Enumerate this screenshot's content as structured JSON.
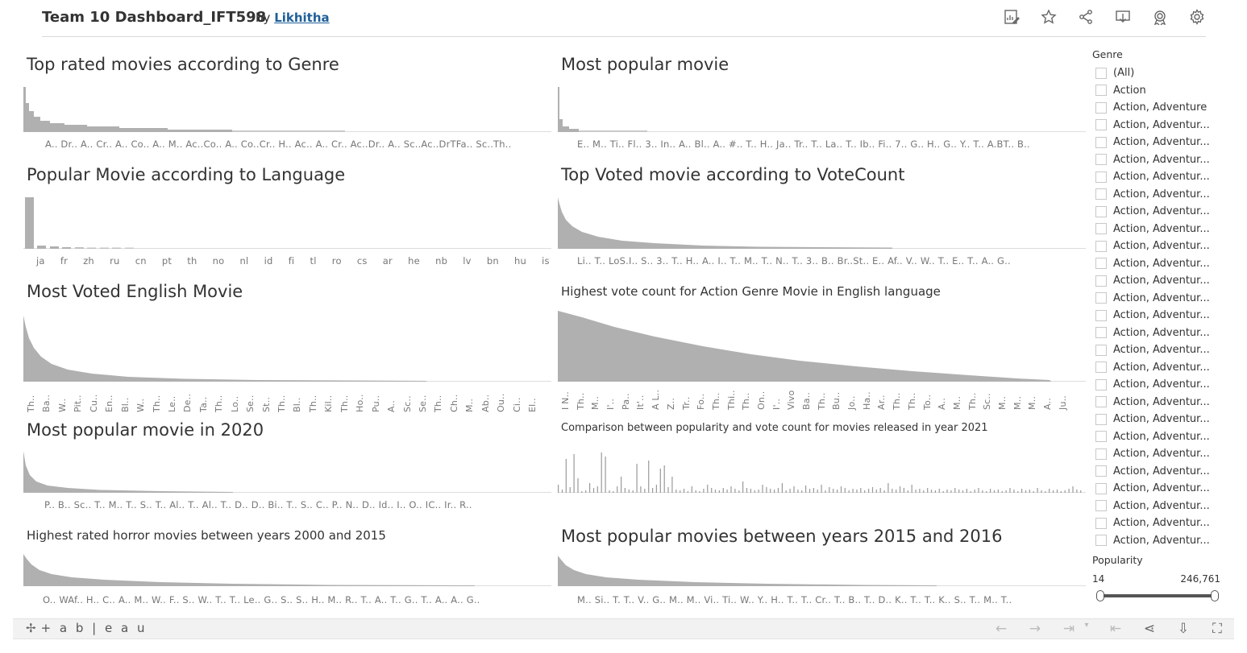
{
  "header": {
    "title": "Team 10 Dashboard_IFT598",
    "by": "by",
    "author": "Likhitha",
    "icons": [
      "edit-chart-icon",
      "star-icon",
      "share-icon",
      "download-icon",
      "badge-icon",
      "gear-icon"
    ]
  },
  "panels": {
    "p1": {
      "title": "Top rated movies according to Genre",
      "ticks": "A.. Dr.. A.. Cr.. A.. Co.. A.. M.. Ac..Co.. A.. Co..Cr.. H.. Ac.. A.. Cr.. Ac..Dr.. A.. Sc..Ac..DrTFa.. Sc..Th.."
    },
    "p2": {
      "title": "Most popular movie",
      "ticks": "E.. M.. Ti.. Fl.. 3.. In.. A.. Bl.. A.. #.. T.. H.. Ja.. Tr.. T.. La.. T.. Ib.. Fi.. 7.. G.. H.. G.. Y.. T.. A.BT.. B.."
    },
    "p3": {
      "title": "Popular Movie according to Language",
      "ticks": [
        "ja",
        "fr",
        "zh",
        "ru",
        "cn",
        "pt",
        "th",
        "no",
        "nl",
        "id",
        "fi",
        "tl",
        "ro",
        "cs",
        "ar",
        "he",
        "nb",
        "lv",
        "bn",
        "hu",
        "is"
      ]
    },
    "p4": {
      "title": "Top Voted movie according to VoteCount",
      "ticks": "Li.. T.. LoS.I.. S.. 3.. T.. H.. A.. I.. T.. M.. T.. N.. T.. 3.. B.. Br..St.. E.. Af.. V.. W.. T.. E.. T.. A.. G.."
    },
    "p5": {
      "title": "Most Voted English Movie",
      "ticks": [
        "Th..",
        "Ba..",
        "W..",
        "Pit..",
        "Cu..",
        "En..",
        "Bl..",
        "W..",
        "Th..",
        "Le..",
        "De..",
        "Ta..",
        "Th..",
        "Lo..",
        "Se..",
        "St..",
        "Th..",
        "Bl..",
        "Th..",
        "Kil..",
        "Th..",
        "Ho..",
        "Pu..",
        "A..",
        "Sc..",
        "Se..",
        "Th..",
        "Ch..",
        "M..",
        "Ab..",
        "Ou..",
        "Ci..",
        "El.."
      ]
    },
    "p6": {
      "title": "Highest vote count for Action Genre Movie in  English language",
      "ticks": [
        "I N..",
        "Th..",
        "M..",
        "I'..",
        "Pa..",
        "It'..",
        "A L..",
        "Z..",
        "Tr..",
        "Fo..",
        "Th..",
        "Thi..",
        "Th..",
        "On..",
        "I'..",
        "Vivo",
        "Ba..",
        "Th..",
        "Bu..",
        "Jo..",
        "Ha..",
        "Ar..",
        "Th..",
        "Th..",
        "To..",
        "A..",
        "M..",
        "Th..",
        "Sc..",
        "M..",
        "M..",
        "M..",
        "A..",
        "Ju.."
      ]
    },
    "p7": {
      "title": "Most popular movie in 2020",
      "ticks": "P.. B.. Sc.. T.. M.. T.. S.. T.. Al.. T.. Al.. T.. D.. D.. Bi.. T.. S.. C.. P.. N.. D.. Id.. I.. O.. IC.. Ir.. R.."
    },
    "p8": {
      "title": "Comparison between popularity and vote count for movies released in year 2021"
    },
    "p9": {
      "title": "Highest rated horror movies between years 2000 and 2015",
      "ticks": "O.. WAf.. H.. C.. A.. M.. W.. F.. S.. W.. T.. T.. Le.. G.. S.. S.. H.. M.. R.. T.. A.. T.. G.. T.. A.. A.. G.."
    },
    "p10": {
      "title": "Most popular movies between years 2015 and 2016",
      "ticks": "M.. Si.. T. T.. V.. G.. M.. M.. Vi.. Ti.. W.. Y.. H.. T.. T.. Cr.. T.. B.. T.. D.. K.. T.. T.. K.. S.. T.. M.. T.."
    }
  },
  "filter": {
    "label": "Genre",
    "items": [
      "(All)",
      "Action",
      "Action, Adventure",
      "Action, Adventur...",
      "Action, Adventur...",
      "Action, Adventur...",
      "Action, Adventur...",
      "Action, Adventur...",
      "Action, Adventur...",
      "Action, Adventur...",
      "Action, Adventur...",
      "Action, Adventur...",
      "Action, Adventur...",
      "Action, Adventur...",
      "Action, Adventur...",
      "Action, Adventur...",
      "Action, Adventur...",
      "Action, Adventur...",
      "Action, Adventur...",
      "Action, Adventur...",
      "Action, Adventur...",
      "Action, Adventur...",
      "Action, Adventur...",
      "Action, Adventur...",
      "Action, Adventur...",
      "Action, Adventur...",
      "Action, Adventur...",
      "Action, Adventur..."
    ]
  },
  "popularity": {
    "label": "Popularity",
    "min": "14",
    "max": "246,761"
  },
  "footer": {
    "logo": "+ a b | e a u",
    "icons": [
      "undo-icon",
      "redo-icon",
      "revert-icon",
      "dropdown-icon",
      "first-icon",
      "share-icon",
      "download-icon",
      "fullscreen-icon"
    ]
  },
  "colors": {
    "bar": "#b0b0b0",
    "axis": "#d0d0d0",
    "link": "#1f5f99"
  }
}
